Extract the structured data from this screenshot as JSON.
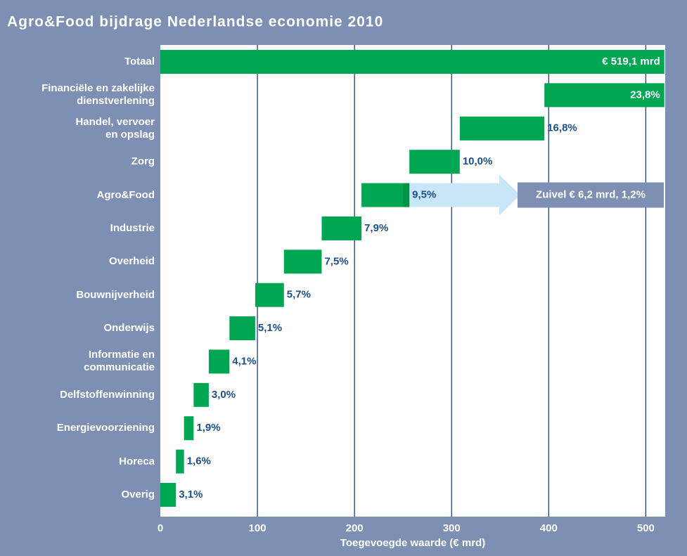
{
  "chart_data": {
    "type": "waterfall",
    "title": "Agro&Food bijdrage Nederlandse economie 2010",
    "x_label": "Toegevoegde waarde (€ mrd)",
    "categories": [
      "Totaal",
      "Financiële en zakelijke\ndienstverlening",
      "Handel, vervoer\nen opslag",
      "Zorg",
      "Agro&Food",
      "Industrie",
      "Overheid",
      "Bouwnijverheid",
      "Onderwijs",
      "Informatie en\ncommunicatie",
      "Delfstoffenwinning",
      "Energievoorziening",
      "Horeca",
      "Overig"
    ],
    "values": [
      519.1,
      123.5,
      87.2,
      51.9,
      49.3,
      41.0,
      38.9,
      29.6,
      26.5,
      21.3,
      15.6,
      9.9,
      8.3,
      16.1
    ],
    "value_labels": [
      "€ 519,1 mrd",
      null,
      null,
      null,
      null,
      null,
      null,
      null,
      null,
      null,
      null,
      null,
      null,
      null
    ],
    "shares": [
      null,
      23.8,
      16.8,
      10.0,
      9.5,
      7.9,
      7.5,
      5.7,
      5.1,
      4.1,
      3.0,
      1.9,
      1.6,
      3.1
    ],
    "share_labels": [
      null,
      "23,8%",
      "16,8%",
      "10,0%",
      "9,5%",
      "7,9%",
      "7,5%",
      "5,7%",
      "5,1%",
      "4,1%",
      "3,0%",
      "1,9%",
      "1,6%",
      "3,1%"
    ],
    "highlight": {
      "category": "Agro&Food",
      "label": "Zuivel € 6,2 mrd, 1,2%",
      "value": 6.2,
      "color": "#009245"
    },
    "color": "#00a651",
    "xlim": [
      0,
      520
    ],
    "xticks": [
      0,
      100,
      200,
      300,
      400,
      500
    ],
    "grid": true
  }
}
